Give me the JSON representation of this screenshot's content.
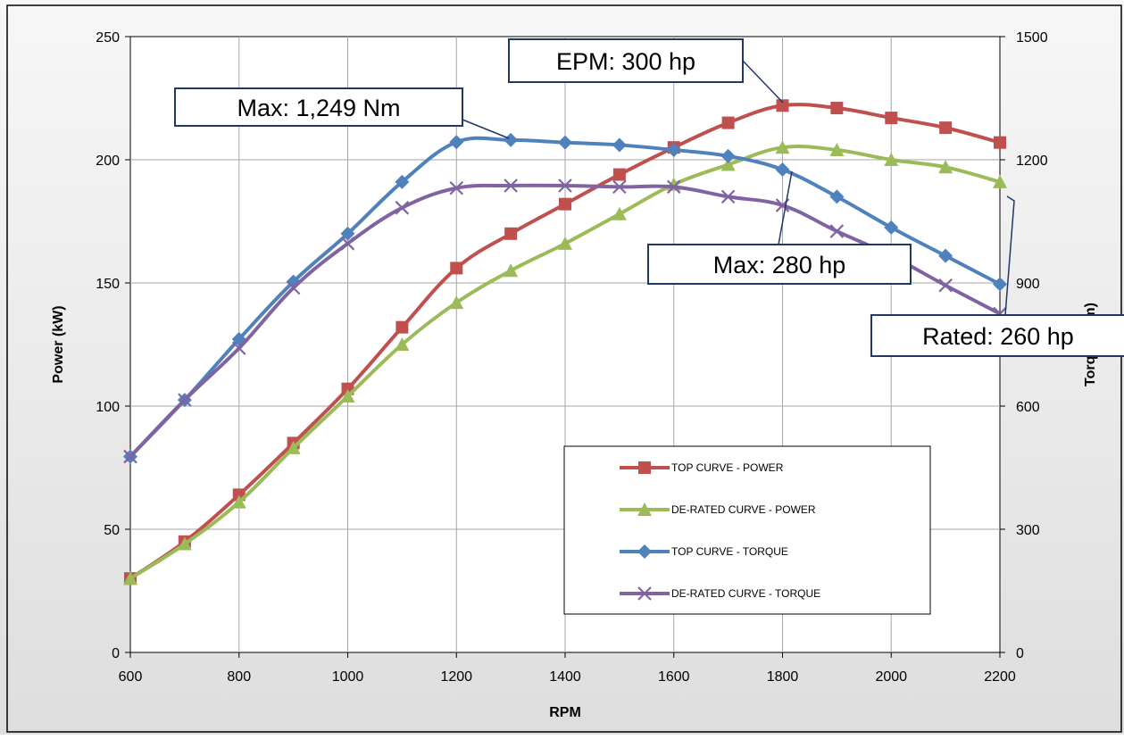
{
  "chart_data": {
    "type": "line",
    "xlabel": "RPM",
    "ylabel": "Power (kW)",
    "y2label": "Torque (Nm)",
    "xlim": [
      600,
      2200
    ],
    "ylim": [
      0,
      250
    ],
    "y2lim": [
      0,
      1500
    ],
    "x_ticks": [
      600,
      800,
      1000,
      1200,
      1400,
      1600,
      1800,
      2000,
      2200
    ],
    "y_ticks": [
      0,
      50,
      100,
      150,
      200,
      250
    ],
    "y2_ticks": [
      0,
      300,
      600,
      900,
      1200,
      1500
    ],
    "grid": true,
    "legend_position": "bottom-right inside plot",
    "x": [
      600,
      700,
      800,
      900,
      1000,
      1100,
      1200,
      1300,
      1400,
      1500,
      1600,
      1700,
      1800,
      1900,
      2000,
      2100,
      2200
    ],
    "series": [
      {
        "name": "TOP CURVE - POWER",
        "axis": "left",
        "color": "#c0504d",
        "marker": "square",
        "values": [
          30,
          45,
          64,
          85,
          107,
          132,
          156,
          170,
          182,
          194,
          205,
          215,
          222,
          221,
          217,
          213,
          207
        ]
      },
      {
        "name": "DE-RATED CURVE - POWER",
        "axis": "left",
        "color": "#9bbb59",
        "marker": "triangle",
        "values": [
          30,
          44,
          61,
          83,
          104,
          125,
          142,
          155,
          166,
          178,
          190,
          198,
          205,
          204,
          200,
          197,
          191
        ]
      },
      {
        "name": "TOP CURVE - TORQUE",
        "axis": "right",
        "color": "#4f81bd",
        "marker": "diamond",
        "values": [
          477,
          615,
          763,
          903,
          1020,
          1146,
          1243,
          1248,
          1242,
          1236,
          1224,
          1209,
          1176,
          1110,
          1035,
          966,
          897
        ]
      },
      {
        "name": "DE-RATED CURVE - TORQUE",
        "axis": "right",
        "color": "#8064a2",
        "marker": "x",
        "values": [
          477,
          615,
          741,
          888,
          996,
          1083,
          1131,
          1137,
          1137,
          1134,
          1134,
          1110,
          1089,
          1026,
          966,
          894,
          825
        ]
      }
    ],
    "annotations": [
      {
        "label": "EPM: 300 hp"
      },
      {
        "label": "Max: 1,249 Nm"
      },
      {
        "label": "Max: 280 hp"
      },
      {
        "label": "Rated: 260 hp"
      }
    ]
  }
}
